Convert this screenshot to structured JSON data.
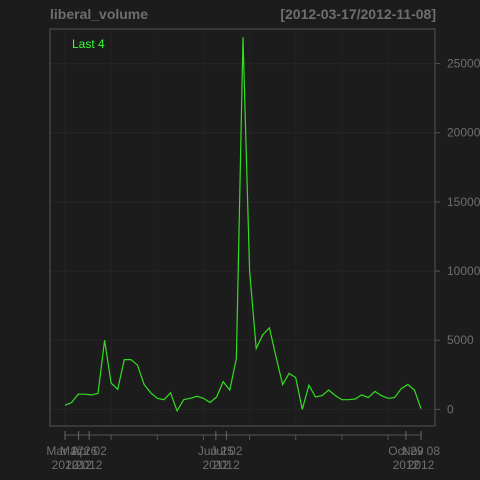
{
  "chart_data": {
    "type": "line",
    "title": "liberal_volume",
    "date_range": "[2012-03-17/2012-11-08]",
    "legend": "Last 4",
    "legend_position": "top-left",
    "line_color": "#33dd22",
    "grid": true,
    "ylim": [
      -1200,
      27500
    ],
    "y_ticks": [
      0,
      5000,
      10000,
      15000,
      20000,
      25000
    ],
    "x_tick_labels": [
      {
        "date": "2012-03-17",
        "line1": "Mar 17",
        "line2": "2012"
      },
      {
        "date": "2012-03-26",
        "line1": "Mar 26",
        "line2": "2012"
      },
      {
        "date": "2012-04-02",
        "line1": "Apr 02",
        "line2": "2012"
      },
      {
        "date": "2012-06-25",
        "line1": "Jun 25",
        "line2": "2012"
      },
      {
        "date": "2012-07-02",
        "line1": "Jul 02",
        "line2": "2012"
      },
      {
        "date": "2012-10-29",
        "line1": "Oct 29",
        "line2": "2012"
      },
      {
        "date": "2012-11-08",
        "line1": "Nov 08",
        "line2": "2012"
      }
    ],
    "series": [
      {
        "values": [
          300,
          500,
          1100,
          1100,
          1050,
          1150,
          5000,
          1900,
          1450,
          3600,
          3600,
          3200,
          1800,
          1200,
          800,
          700,
          1200,
          -100,
          700,
          800,
          950,
          800,
          500,
          900,
          2000,
          1400,
          3700,
          26900,
          10000,
          4400,
          5400,
          5900,
          3800,
          1800,
          2600,
          2300,
          0,
          1750,
          900,
          1000,
          1400,
          1000,
          700,
          700,
          750,
          1050,
          850,
          1300,
          1000,
          800,
          850,
          1500,
          1800,
          1400,
          50
        ]
      }
    ]
  }
}
